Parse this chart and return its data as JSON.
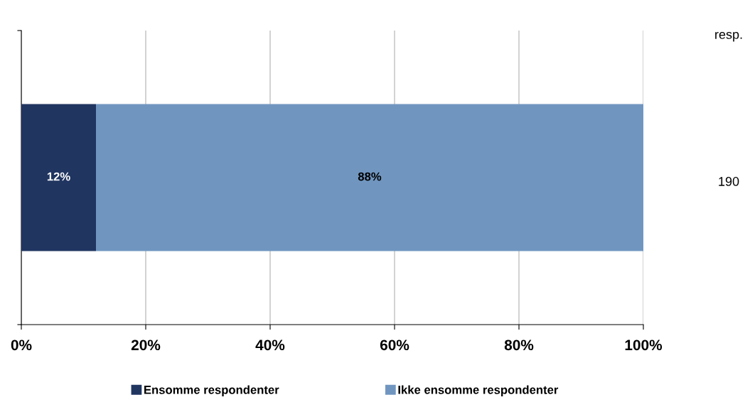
{
  "chart_data": {
    "type": "bar",
    "orientation": "horizontal",
    "stacked": true,
    "categories": [
      null
    ],
    "series": [
      {
        "name": "Ensomme respondenter",
        "color": "#203560",
        "values": [
          12
        ],
        "value_labels": [
          "12%"
        ]
      },
      {
        "name": "Ikke ensomme respondenter",
        "color": "#7096c0",
        "values": [
          88
        ],
        "value_labels": [
          "88%"
        ]
      }
    ],
    "xlim": [
      0,
      100
    ],
    "xticks": [
      {
        "value": 0,
        "label": "0%"
      },
      {
        "value": 20,
        "label": "20%"
      },
      {
        "value": 40,
        "label": "40%"
      },
      {
        "value": 60,
        "label": "60%"
      },
      {
        "value": 80,
        "label": "80%"
      },
      {
        "value": 100,
        "label": "100%"
      }
    ],
    "grid": "x",
    "legend": "bottom",
    "annotations": [
      "resp.",
      "190"
    ]
  }
}
